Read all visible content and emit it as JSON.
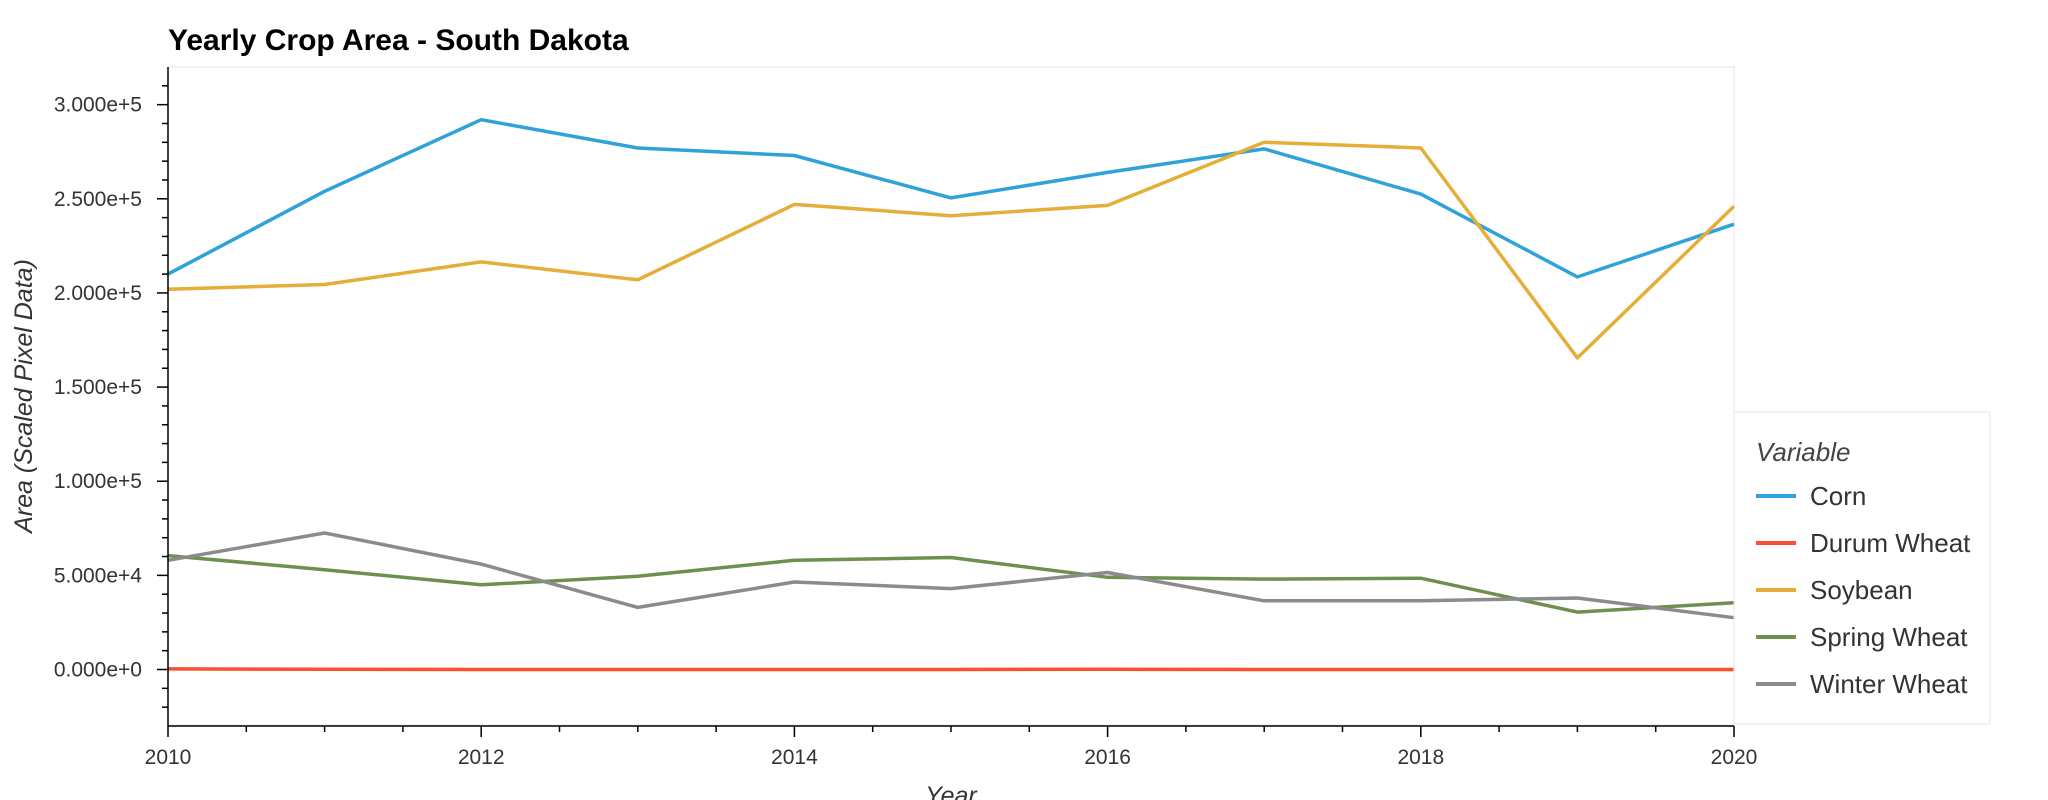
{
  "chart_data": {
    "type": "line",
    "title": "Yearly Crop Area - South Dakota",
    "xlabel": "Year",
    "ylabel": "Area (Scaled Pixel Data)",
    "x": [
      2010,
      2011,
      2012,
      2013,
      2014,
      2015,
      2016,
      2017,
      2018,
      2019,
      2020
    ],
    "xlim": [
      2010,
      2020
    ],
    "ylim": [
      -30000,
      320000
    ],
    "x_ticks": [
      2010,
      2012,
      2014,
      2016,
      2018,
      2020
    ],
    "x_tick_labels": [
      "2010",
      "2012",
      "2014",
      "2016",
      "2018",
      "2020"
    ],
    "y_ticks": [
      0,
      50000,
      100000,
      150000,
      200000,
      250000,
      300000
    ],
    "y_tick_labels": [
      "0.000e+0",
      "5.000e+4",
      "1.000e+5",
      "1.500e+5",
      "2.000e+5",
      "2.500e+5",
      "3.000e+5"
    ],
    "grid": false,
    "legend": {
      "title": "Variable",
      "placement": "right"
    },
    "series": [
      {
        "name": "Corn",
        "color": "#30a2da",
        "values": [
          210000,
          254000,
          292000,
          277000,
          273000,
          250500,
          264000,
          276500,
          252500,
          208500,
          236500
        ]
      },
      {
        "name": "Durum Wheat",
        "color": "#fc4f30",
        "values": [
          300,
          100,
          0,
          0,
          0,
          0,
          100,
          0,
          0,
          0,
          0
        ]
      },
      {
        "name": "Soybean",
        "color": "#e5ae38",
        "values": [
          202000,
          204500,
          216500,
          207000,
          247000,
          241000,
          246500,
          280000,
          277000,
          165500,
          246000
        ]
      },
      {
        "name": "Spring Wheat",
        "color": "#6d904f",
        "values": [
          60500,
          53000,
          45000,
          49500,
          58000,
          59500,
          49000,
          48000,
          48500,
          30500,
          35500
        ]
      },
      {
        "name": "Winter Wheat",
        "color": "#8b8b8b",
        "values": [
          58000,
          72500,
          56000,
          33000,
          46500,
          43000,
          51500,
          36500,
          36500,
          38000,
          27500
        ]
      }
    ]
  }
}
